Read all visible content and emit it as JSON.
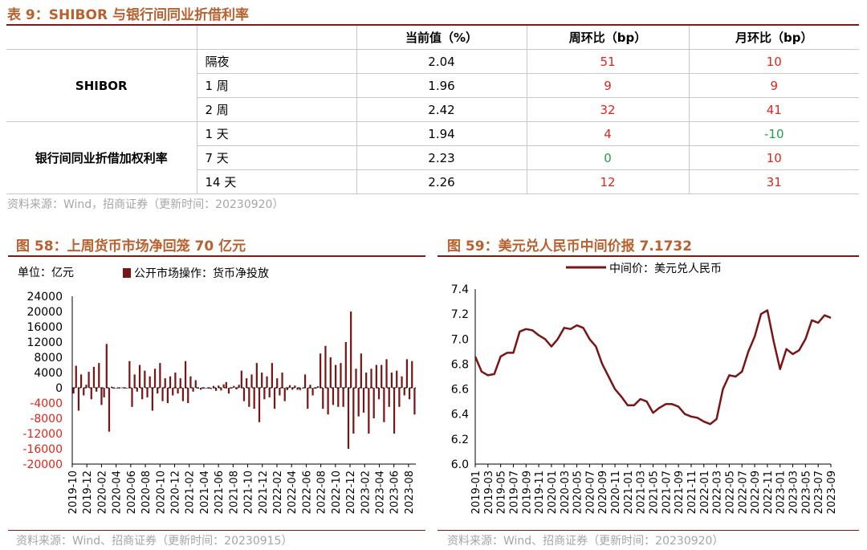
{
  "table9": {
    "title": "表 9：SHIBOR 与银行间同业折借利率",
    "headers": [
      "",
      "",
      "当前值（%）",
      "周环比（bp）",
      "月环比（bp）"
    ],
    "groups": [
      {
        "name": "SHIBOR",
        "rows": [
          {
            "term": "隔夜",
            "value": "2.04",
            "wow": "51",
            "mom": "10",
            "wow_color": "red",
            "mom_color": "red"
          },
          {
            "term": "1 周",
            "value": "1.96",
            "wow": "9",
            "mom": "9",
            "wow_color": "red",
            "mom_color": "red"
          },
          {
            "term": "2 周",
            "value": "2.42",
            "wow": "32",
            "mom": "41",
            "wow_color": "red",
            "mom_color": "red"
          }
        ]
      },
      {
        "name": "银行间同业折借加权利率",
        "rows": [
          {
            "term": "1 天",
            "value": "1.94",
            "wow": "4",
            "mom": "-10",
            "wow_color": "red",
            "mom_color": "green"
          },
          {
            "term": "7 天",
            "value": "2.23",
            "wow": "0",
            "mom": "10",
            "wow_color": "green",
            "mom_color": "red"
          },
          {
            "term": "14 天",
            "value": "2.26",
            "wow": "12",
            "mom": "31",
            "wow_color": "red",
            "mom_color": "red"
          }
        ]
      }
    ],
    "source": "资料来源：Wind，招商证券（更新时间：20230920）"
  },
  "chart_data": [
    {
      "type": "bar",
      "title": "图 58：上周货币市场净回笼 70 亿元",
      "unit_label": "单位：亿元",
      "legend": "公开市场操作：货币净投放",
      "color": "#7b1515",
      "ylim": [
        -20000,
        24000
      ],
      "yticks": [
        -20000,
        -16000,
        -12000,
        -8000,
        -4000,
        0,
        4000,
        8000,
        12000,
        16000,
        20000,
        24000
      ],
      "negative_tick_color": "#e0251c",
      "xticks": [
        "2019-10",
        "2019-12",
        "2020-02",
        "2020-04",
        "2020-06",
        "2020-08",
        "2020-10",
        "2020-12",
        "2021-02",
        "2021-04",
        "2021-06",
        "2021-08",
        "2021-10",
        "2021-12",
        "2022-02",
        "2022-04",
        "2022-06",
        "2022-08",
        "2022-10",
        "2022-12",
        "2023-02",
        "2023-04",
        "2023-06",
        "2023-08"
      ],
      "x_start": "2019-10",
      "x_end": "2023-09",
      "values": [
        -1500,
        5800,
        -6000,
        3500,
        -2000,
        800,
        4200,
        -3000,
        5500,
        -1000,
        6500,
        -4500,
        -2500,
        11500,
        -11500,
        300,
        -200,
        0,
        -100,
        100,
        0,
        0,
        7000,
        -5000,
        3500,
        -1000,
        6000,
        -3000,
        4500,
        -2500,
        3000,
        -6000,
        5000,
        -1500,
        6500,
        -3500,
        2500,
        -4000,
        3000,
        -2000,
        4000,
        -1500,
        2500,
        -3500,
        7000,
        -4000,
        3000,
        -1000,
        2000,
        -200,
        -500,
        -200,
        0,
        -200,
        -300,
        500,
        -800,
        600,
        -700,
        900,
        1500,
        -1500,
        0,
        500,
        -400,
        800,
        4500,
        -3500,
        2500,
        -5000,
        3500,
        -5500,
        6500,
        -9000,
        4000,
        -3000,
        3000,
        -2500,
        6500,
        -5500,
        2500,
        -2000,
        4000,
        -3500,
        -600,
        700,
        -500,
        600,
        -500,
        -600,
        0,
        3500,
        -5500,
        800,
        -2000,
        -200,
        400,
        9000,
        -5500,
        11000,
        -7000,
        8000,
        -4500,
        6000,
        -5000,
        6500,
        -5000,
        12000,
        -16000,
        20000,
        -12000,
        5000,
        -7500,
        9000,
        -6500,
        4000,
        -12000,
        5000,
        -8000,
        6000,
        -3000,
        6000,
        -9000,
        7500,
        -5000,
        4000,
        -12000,
        4500,
        -5000,
        3000,
        -2000,
        7500,
        -3000,
        7000,
        -7000
      ]
    },
    {
      "type": "line",
      "title": "图 59：美元兑人民币中间价报 7.1732",
      "legend": "中间价：美元兑人民币",
      "color": "#7b1515",
      "ylim": [
        6.0,
        7.4
      ],
      "yticks": [
        6.0,
        6.2,
        6.4,
        6.6,
        6.8,
        7.0,
        7.2,
        7.4
      ],
      "xticks": [
        "2019-01",
        "2019-03",
        "2019-05",
        "2019-07",
        "2019-09",
        "2019-11",
        "2020-01",
        "2020-03",
        "2020-05",
        "2020-07",
        "2020-09",
        "2020-11",
        "2021-01",
        "2021-03",
        "2021-05",
        "2021-07",
        "2021-09",
        "2021-11",
        "2022-01",
        "2022-03",
        "2022-05",
        "2022-07",
        "2022-09",
        "2022-11",
        "2023-01",
        "2023-03",
        "2023-05",
        "2023-07",
        "2023-09"
      ],
      "x": [
        "2019-01",
        "2019-02",
        "2019-03",
        "2019-04",
        "2019-05",
        "2019-06",
        "2019-07",
        "2019-08",
        "2019-09",
        "2019-10",
        "2019-11",
        "2019-12",
        "2020-01",
        "2020-02",
        "2020-03",
        "2020-04",
        "2020-05",
        "2020-06",
        "2020-07",
        "2020-08",
        "2020-09",
        "2020-10",
        "2020-11",
        "2020-12",
        "2021-01",
        "2021-02",
        "2021-03",
        "2021-04",
        "2021-05",
        "2021-06",
        "2021-07",
        "2021-08",
        "2021-09",
        "2021-10",
        "2021-11",
        "2021-12",
        "2022-01",
        "2022-02",
        "2022-03",
        "2022-04",
        "2022-05",
        "2022-06",
        "2022-07",
        "2022-08",
        "2022-09",
        "2022-10",
        "2022-11",
        "2022-12",
        "2023-01",
        "2023-02",
        "2023-03",
        "2023-04",
        "2023-05",
        "2023-06",
        "2023-07",
        "2023-08",
        "2023-09"
      ],
      "values": [
        6.86,
        6.74,
        6.71,
        6.72,
        6.86,
        6.89,
        6.89,
        7.06,
        7.08,
        7.07,
        7.03,
        7.0,
        6.94,
        7.0,
        7.09,
        7.08,
        7.11,
        7.09,
        7.0,
        6.94,
        6.8,
        6.7,
        6.6,
        6.54,
        6.47,
        6.47,
        6.52,
        6.5,
        6.41,
        6.45,
        6.48,
        6.48,
        6.46,
        6.4,
        6.38,
        6.37,
        6.34,
        6.32,
        6.36,
        6.6,
        6.71,
        6.7,
        6.74,
        6.9,
        7.02,
        7.2,
        7.23,
        6.98,
        6.76,
        6.92,
        6.88,
        6.91,
        7.0,
        7.15,
        7.13,
        7.19,
        7.17
      ]
    }
  ],
  "chart58_source": "资料来源：Wind、招商证券（更新时间：20230915）",
  "chart59_source": "资料来源：Wind、招商证券（更新时间：20230920）"
}
